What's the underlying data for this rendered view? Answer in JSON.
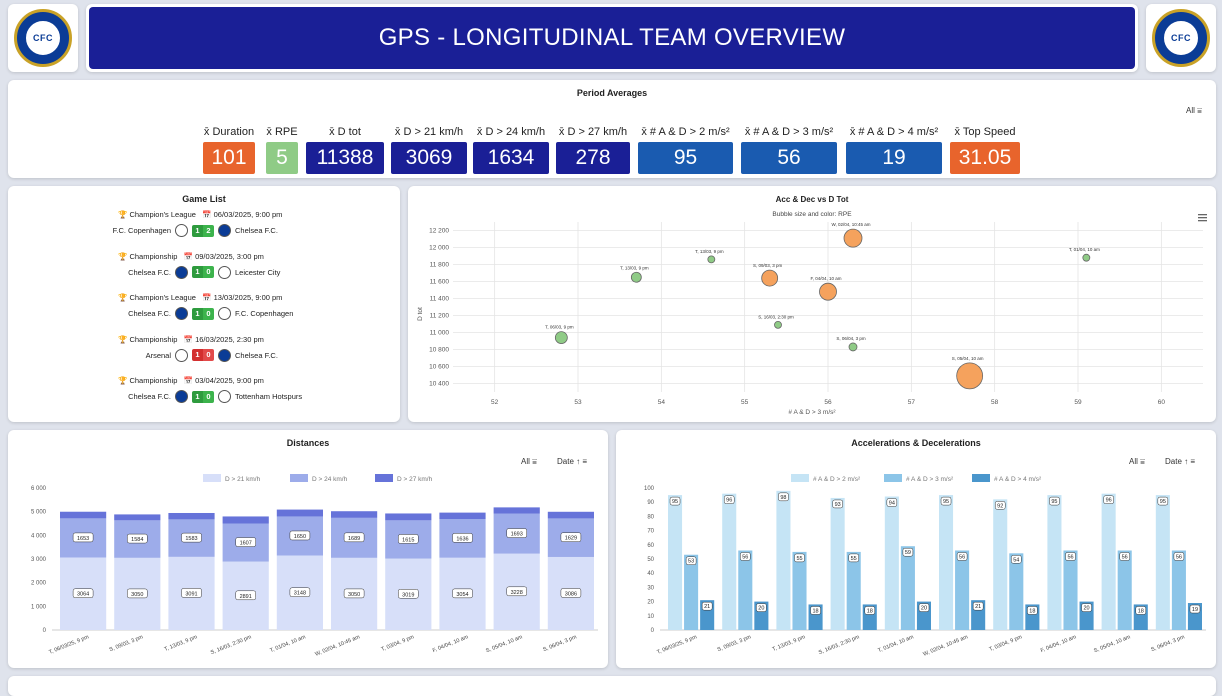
{
  "header": {
    "title": "GPS - LONGITUDINAL TEAM OVERVIEW"
  },
  "period": {
    "title": "Period Averages",
    "filter": "All",
    "kpis": [
      {
        "label": "x̄ Duration",
        "value": "101",
        "color": "#e8642c"
      },
      {
        "label": "x̄ RPE",
        "value": "5",
        "color": "#8fcb86"
      },
      {
        "label": "x̄ D tot",
        "value": "11388",
        "color": "#1a1f96"
      },
      {
        "label": "x̄ D > 21 km/h",
        "value": "3069",
        "color": "#1a1f96"
      },
      {
        "label": "x̄ D > 24 km/h",
        "value": "1634",
        "color": "#1a1f96"
      },
      {
        "label": "x̄ D > 27 km/h",
        "value": "278",
        "color": "#1a1f96"
      },
      {
        "label": "x̄ # A & D > 2 m/s²",
        "value": "95",
        "color": "#1a5bb0"
      },
      {
        "label": "x̄ # A & D > 3 m/s²",
        "value": "56",
        "color": "#1a5bb0"
      },
      {
        "label": "x̄ # A & D > 4 m/s²",
        "value": "19",
        "color": "#1a5bb0"
      },
      {
        "label": "x̄ Top Speed",
        "value": "31.05",
        "color": "#e8642c"
      }
    ]
  },
  "games": {
    "title": "Game List",
    "items": [
      {
        "comp": "Champion's League",
        "date": "06/03/2025, 9:00 pm",
        "home": "F.C. Copenhagen",
        "away": "Chelsea F.C.",
        "hs": "1",
        "as": "2",
        "result": "win"
      },
      {
        "comp": "Championship",
        "date": "09/03/2025, 3:00 pm",
        "home": "Chelsea F.C.",
        "away": "Leicester City",
        "hs": "1",
        "as": "0",
        "result": "win"
      },
      {
        "comp": "Champion's League",
        "date": "13/03/2025, 9:00 pm",
        "home": "Chelsea F.C.",
        "away": "F.C. Copenhagen",
        "hs": "1",
        "as": "0",
        "result": "win"
      },
      {
        "comp": "Championship",
        "date": "16/03/2025, 2:30 pm",
        "home": "Arsenal",
        "away": "Chelsea F.C.",
        "hs": "1",
        "as": "0",
        "result": "loss"
      },
      {
        "comp": "Championship",
        "date": "03/04/2025, 9:00 pm",
        "home": "Chelsea F.C.",
        "away": "Tottenham Hotspurs",
        "hs": "1",
        "as": "0",
        "result": "win"
      }
    ]
  },
  "bubble": {
    "title": "Acc & Dec vs D Tot",
    "subtitle": "Bubble size and color: RPE",
    "xlabel": "# A & D > 3 m/s²",
    "ylabel": "D tot"
  },
  "distances": {
    "title": "Distances",
    "filter": "All",
    "sort": "Date"
  },
  "accdec": {
    "title": "Accelerations & Decelerations",
    "filter": "All",
    "sort": "Date"
  },
  "chart_data": [
    {
      "type": "scatter",
      "title": "Acc & Dec vs D Tot",
      "subtitle": "Bubble size and color: RPE",
      "xlabel": "# A & D > 3 m/s²",
      "ylabel": "D tot",
      "xlim": [
        51.5,
        60.5
      ],
      "ylim": [
        10300,
        12300
      ],
      "xticks": [
        "52",
        "53",
        "54",
        "55",
        "56",
        "57",
        "58",
        "59",
        "60"
      ],
      "yticks": [
        "10 400",
        "10 600",
        "10 800",
        "11 000",
        "11 200",
        "11 400",
        "11 600",
        "11 800",
        "12 000",
        "12 200"
      ],
      "points": [
        {
          "label": "T, 06/03, 9 pm",
          "x": 52.8,
          "y": 10940,
          "r": 6,
          "color": "#8fcb86"
        },
        {
          "label": "T, 13/03, 9 pm",
          "x": 53.7,
          "y": 11650,
          "r": 5,
          "color": "#8fcb86"
        },
        {
          "label": "T, 13/03, 9 pm",
          "x": 54.6,
          "y": 11860,
          "r": 3.5,
          "color": "#8fcb86"
        },
        {
          "label": "S, 09/03, 3 pm",
          "x": 55.3,
          "y": 11640,
          "r": 8,
          "color": "#f5a25d"
        },
        {
          "label": "S, 16/03, 2:30 pm",
          "x": 55.4,
          "y": 11090,
          "r": 3.5,
          "color": "#8fcb86"
        },
        {
          "label": "W, 02/04, 10:45 am",
          "x": 56.3,
          "y": 12110,
          "r": 9,
          "color": "#f5a25d"
        },
        {
          "label": "F, 04/04, 10 am",
          "x": 56.0,
          "y": 11480,
          "r": 8.5,
          "color": "#f5a25d"
        },
        {
          "label": "S, 06/04, 3 pm",
          "x": 56.3,
          "y": 10830,
          "r": 4,
          "color": "#8fcb86"
        },
        {
          "label": "S, 05/04, 10 am",
          "x": 57.7,
          "y": 10490,
          "r": 13,
          "color": "#f5a25d"
        },
        {
          "label": "T, 01/04, 10 am",
          "x": 59.1,
          "y": 11880,
          "r": 3.5,
          "color": "#8fcb86"
        }
      ]
    },
    {
      "type": "bar",
      "title": "Distances",
      "stacked": true,
      "ylim": [
        0,
        6000
      ],
      "yticks": [
        "0",
        "1 000",
        "2 000",
        "3 000",
        "4 000",
        "5 000",
        "6 000"
      ],
      "categories": [
        "T, 06/03/25, 9 pm",
        "S, 09/03, 3 pm",
        "T, 13/03, 9 pm",
        "S, 16/03, 2:30 pm",
        "T, 01/04, 10 am",
        "W, 02/04, 10:45 am",
        "T, 03/04, 9 pm",
        "F, 04/04, 10 am",
        "S, 05/04, 10 am",
        "S, 06/04, 3 pm"
      ],
      "series": [
        {
          "name": "D > 21 km/h",
          "color": "#d7dff9",
          "values": [
            3064,
            3050,
            3091,
            2891,
            3148,
            3050,
            3019,
            3054,
            3228,
            3086
          ]
        },
        {
          "name": "D > 24 km/h",
          "color": "#9dacea",
          "values": [
            1653,
            1584,
            1583,
            1607,
            1650,
            1689,
            1615,
            1636,
            1693,
            1629
          ]
        },
        {
          "name": "D > 27 km/h",
          "color": "#6673d9",
          "values": [
            280,
            250,
            270,
            300,
            290,
            280,
            290,
            270,
            260,
            280
          ]
        }
      ]
    },
    {
      "type": "bar",
      "title": "Accelerations & Decelerations",
      "ylim": [
        0,
        100
      ],
      "yticks": [
        "0",
        "10",
        "20",
        "30",
        "40",
        "50",
        "60",
        "70",
        "80",
        "90",
        "100"
      ],
      "categories": [
        "T, 06/03/25, 9 pm",
        "S, 09/03, 3 pm",
        "T, 13/03, 9 pm",
        "S, 16/03, 2:30 pm",
        "T, 01/04, 10 am",
        "W, 02/04, 10:45 am",
        "T, 03/04, 9 pm",
        "F, 04/04, 10 am",
        "S, 05/04, 10 am",
        "S, 06/04, 3 pm"
      ],
      "series": [
        {
          "name": "# A & D > 2 m/s²",
          "color": "#c5e4f5",
          "values": [
            95,
            96,
            98,
            93,
            94,
            95,
            92,
            95,
            96,
            95
          ]
        },
        {
          "name": "# A & D > 3 m/s²",
          "color": "#8cc5e8",
          "values": [
            53,
            56,
            55,
            55,
            59,
            56,
            54,
            56,
            56,
            56
          ]
        },
        {
          "name": "# A & D > 4 m/s²",
          "color": "#4a96cc",
          "values": [
            21,
            20,
            18,
            18,
            20,
            21,
            18,
            20,
            18,
            19
          ]
        }
      ]
    }
  ]
}
